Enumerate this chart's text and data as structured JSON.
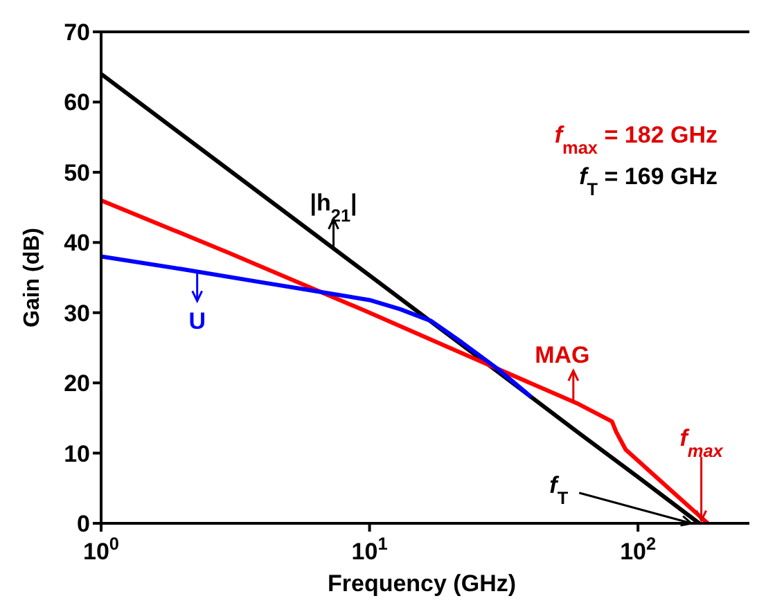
{
  "chart_data": {
    "type": "line",
    "xlabel": "Frequency (GHz)",
    "ylabel": "Gain (dB)",
    "log": "x",
    "xlim": [
      1,
      260
    ],
    "xticks": [
      {
        "value": 1,
        "label": "10$^{0}$"
      },
      {
        "value": 10,
        "label": "10$^{1}$"
      },
      {
        "value": 100,
        "label": "10$^{2}$"
      }
    ],
    "ylim": [
      0,
      70
    ],
    "yticks": [
      0,
      10,
      20,
      30,
      40,
      50,
      60,
      70
    ],
    "marker": "none",
    "line_style": "solid",
    "series": [
      {
        "color": "#000000",
        "x": [
          1,
          10,
          30,
          60,
          100,
          169
        ],
        "values": [
          64,
          35.3,
          21.6,
          12.9,
          6.6,
          0
        ]
      },
      {
        "color": "#ff0000",
        "x": [
          1,
          3,
          10,
          30,
          60,
          80,
          83,
          90,
          130,
          182
        ],
        "values": [
          46,
          38.5,
          30,
          22,
          17,
          14.5,
          13,
          10.5,
          5,
          0
        ]
      },
      {
        "color": "#0000ff",
        "x": [
          1,
          2,
          4,
          6,
          10,
          13,
          17,
          22,
          30,
          40
        ],
        "values": [
          38,
          36.2,
          34.3,
          33.2,
          31.8,
          30.5,
          28.8,
          25.8,
          22,
          18
        ]
      }
    ],
    "annotations": [
      {
        "text": "|h$_{21}$|",
        "x": 7.5,
        "y": 39
      },
      {
        "text": "U",
        "x": 2.3,
        "y": 36
      },
      {
        "text": "MAG",
        "x": 60,
        "y": 17
      },
      {
        "text": "f$_{max}$",
        "x": 182,
        "y": 0
      },
      {
        "text": "f$_{T}$",
        "x": 169,
        "y": 0
      },
      "f$_{max}$ = 182 GHz",
      "f$_{T}$ = 169 GHz"
    ]
  }
}
